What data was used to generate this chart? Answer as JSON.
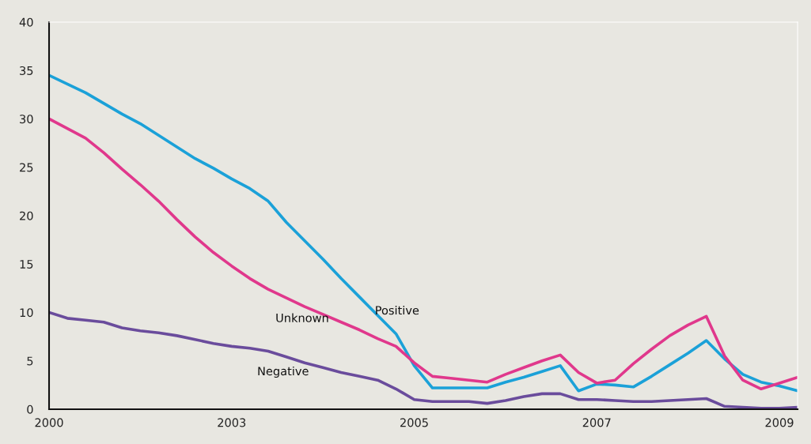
{
  "chart_data": {
    "type": "line",
    "categories": [
      "2000",
      null,
      null,
      null,
      null,
      null,
      null,
      null,
      null,
      null,
      "2003",
      null,
      null,
      null,
      null,
      null,
      null,
      null,
      null,
      null,
      "2005",
      null,
      null,
      null,
      null,
      null,
      null,
      null,
      null,
      null,
      "2007",
      null,
      null,
      null,
      null,
      null,
      null,
      null,
      null,
      null,
      "2009",
      null
    ],
    "series": [
      {
        "name": "Positive",
        "color": "#1ba1d8",
        "values": [
          34.5,
          33.6,
          32.7,
          31.6,
          30.5,
          29.5,
          28.3,
          27.1,
          25.9,
          24.9,
          23.8,
          22.8,
          21.5,
          19.3,
          17.4,
          15.5,
          13.5,
          11.6,
          9.7,
          7.8,
          4.5,
          2.2,
          2.2,
          2.2,
          2.2,
          2.8,
          3.3,
          3.9,
          4.5,
          1.9,
          2.6,
          2.5,
          2.3,
          3.4,
          4.6,
          5.8,
          7.1,
          5.2,
          3.6,
          2.8,
          2.4,
          1.9
        ]
      },
      {
        "name": "Unknown",
        "color": "#e0388c",
        "values": [
          30,
          29,
          28,
          26.5,
          24.8,
          23.2,
          21.5,
          19.6,
          17.8,
          16.2,
          14.8,
          13.5,
          12.4,
          11.5,
          10.6,
          9.8,
          9.0,
          8.2,
          7.3,
          6.5,
          4.8,
          3.4,
          3.2,
          3.0,
          2.8,
          3.6,
          4.3,
          5.0,
          5.6,
          3.8,
          2.7,
          3.0,
          4.7,
          6.2,
          7.6,
          8.7,
          9.6,
          5.5,
          3.0,
          2.1,
          2.7,
          3.3
        ]
      },
      {
        "name": "Negative",
        "color": "#6a4c9c",
        "values": [
          10,
          9.4,
          9.2,
          9.0,
          8.4,
          8.1,
          7.9,
          7.6,
          7.2,
          6.8,
          6.5,
          6.3,
          6.0,
          5.4,
          4.8,
          4.3,
          3.8,
          3.4,
          3.0,
          2.1,
          1.0,
          0.8,
          0.8,
          0.8,
          0.6,
          0.9,
          1.3,
          1.6,
          1.6,
          1.0,
          1.0,
          0.9,
          0.8,
          0.8,
          0.9,
          1.0,
          1.1,
          0.3,
          0.2,
          0.1,
          0.1,
          0.2
        ]
      }
    ],
    "ylim": [
      0,
      40
    ],
    "yticks": [
      0,
      5,
      10,
      15,
      20,
      25,
      30,
      35,
      40
    ],
    "grid": false,
    "legend": false,
    "marker": "none",
    "line_style": "solid"
  }
}
